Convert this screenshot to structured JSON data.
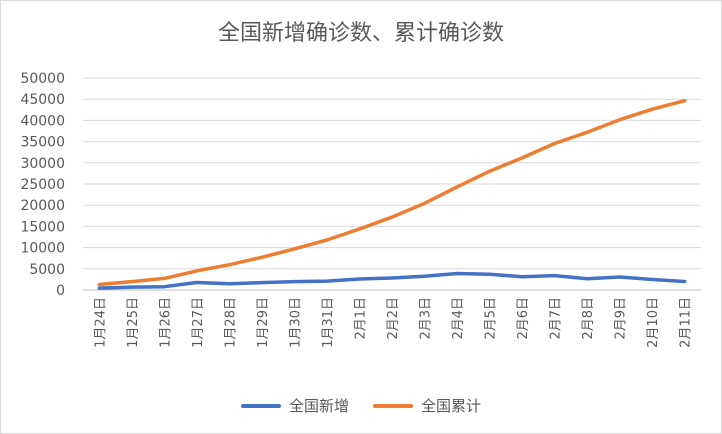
{
  "chart_data": {
    "type": "line",
    "title": "全国新增确诊数、累计确诊数",
    "xlabel": "",
    "ylabel": "",
    "ylim": [
      0,
      50000
    ],
    "yticks": [
      "0",
      "5000",
      "10000",
      "15000",
      "20000",
      "25000",
      "30000",
      "35000",
      "40000",
      "45000",
      "50000"
    ],
    "grid": true,
    "legend_position": "bottom",
    "categories": [
      "1月24日",
      "1月25日",
      "1月26日",
      "1月27日",
      "1月28日",
      "1月29日",
      "1月30日",
      "1月31日",
      "2月1日",
      "2月2日",
      "2月3日",
      "2月4日",
      "2月5日",
      "2月6日",
      "2月7日",
      "2月8日",
      "2月9日",
      "2月10日",
      "2月11日"
    ],
    "series": [
      {
        "name": "全国新增",
        "color": "#4472C4",
        "values": [
          444,
          688,
          769,
          1771,
          1459,
          1737,
          1982,
          2102,
          2590,
          2829,
          3235,
          3887,
          3694,
          3143,
          3399,
          2656,
          3062,
          2478,
          2015
        ]
      },
      {
        "name": "全国累计",
        "color": "#ED7D31",
        "values": [
          1287,
          1975,
          2744,
          4515,
          5974,
          7711,
          9692,
          11791,
          14380,
          17205,
          20438,
          24324,
          28018,
          31161,
          34546,
          37198,
          40171,
          42638,
          44653
        ]
      }
    ]
  }
}
